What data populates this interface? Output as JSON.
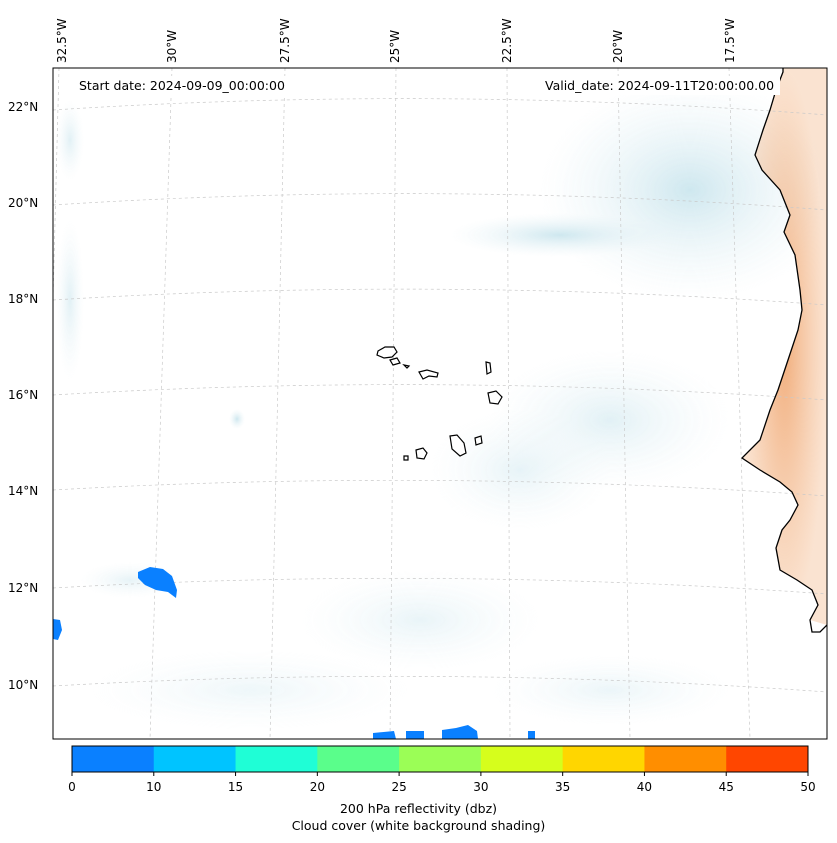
{
  "header": {
    "start_date": "Start date: 2024-09-09_00:00:00",
    "valid_date": "Valid_date: 2024-09-11T20:00:00.00"
  },
  "map": {
    "lon_labels": [
      "32.5°W",
      "30°W",
      "27.5°W",
      "25°W",
      "22.5°W",
      "20°W",
      "17.5°W"
    ],
    "lat_labels": [
      "22°N",
      "20°N",
      "18°N",
      "16°N",
      "14°N",
      "12°N",
      "10°N"
    ],
    "land_color": "#f2b07e",
    "cloud_color": "#cfe6ee",
    "reflectivity_color": "#0a80ff",
    "coastline_color": "#000000",
    "grid": true,
    "projection": "conic"
  },
  "colorbar": {
    "ticks": [
      "0",
      "10",
      "15",
      "20",
      "25",
      "30",
      "35",
      "40",
      "45",
      "50"
    ],
    "colors": [
      "#0a80ff",
      "#00c4ff",
      "#1ffed6",
      "#5afe8b",
      "#9bfe56",
      "#d6fe1c",
      "#ffd600",
      "#ff8e00",
      "#ff4600"
    ],
    "label": "200 hPa reflectivity (dbz)",
    "sublabel": "Cloud cover (white background shading)"
  }
}
